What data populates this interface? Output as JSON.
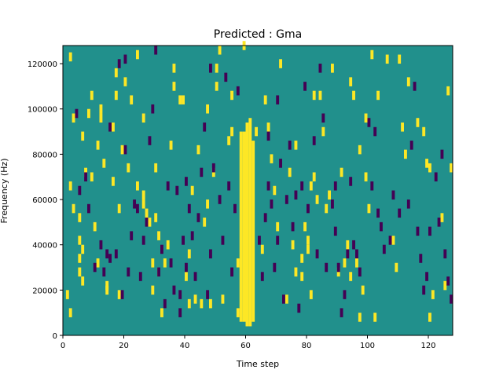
{
  "chart_data": {
    "type": "heatmap",
    "title": "Predicted : Gma",
    "xlabel": "Time step",
    "ylabel": "Frequency (Hz)",
    "xlim": [
      0,
      128
    ],
    "ylim": [
      0,
      128000
    ],
    "x_ticks": [
      0,
      20,
      40,
      60,
      80,
      100,
      120
    ],
    "x_tick_labels": [
      "0",
      "20",
      "40",
      "60",
      "80",
      "100",
      "120"
    ],
    "y_ticks": [
      0,
      20000,
      40000,
      60000,
      80000,
      100000,
      120000
    ],
    "y_tick_labels": [
      "0",
      "20000",
      "40000",
      "60000",
      "80000",
      "100000",
      "120000"
    ],
    "grid": false,
    "legend": false,
    "colors": {
      "background": "#21908c",
      "high": "#fde725",
      "low": "#440154"
    },
    "background_value": 0,
    "cell_height_hz": 2000,
    "dominant_band": {
      "value": 1,
      "columns": [
        {
          "x": 58,
          "y_range": [
            6000,
            90000
          ]
        },
        {
          "x": 59,
          "y_range": [
            6000,
            90000
          ]
        },
        {
          "x": 60,
          "y_range": [
            4000,
            94000
          ]
        },
        {
          "x": 61,
          "y_range": [
            4000,
            96000
          ]
        },
        {
          "x": 62,
          "y_range": [
            6000,
            86000
          ]
        }
      ]
    },
    "cells_high": [
      [
        2,
        123000
      ],
      [
        3,
        96000
      ],
      [
        2,
        66000
      ],
      [
        2,
        10000
      ],
      [
        1,
        18000
      ],
      [
        3,
        56000
      ],
      [
        5,
        52000
      ],
      [
        5,
        42000
      ],
      [
        5,
        34000
      ],
      [
        5,
        28000
      ],
      [
        6,
        38000
      ],
      [
        6,
        24000
      ],
      [
        6,
        88000
      ],
      [
        7,
        72000
      ],
      [
        8,
        98000
      ],
      [
        9,
        70000
      ],
      [
        9,
        106000
      ],
      [
        10,
        48000
      ],
      [
        11,
        32000
      ],
      [
        11,
        84000
      ],
      [
        12,
        96000
      ],
      [
        12,
        100000
      ],
      [
        13,
        76000
      ],
      [
        14,
        22000
      ],
      [
        14,
        20000
      ],
      [
        16,
        92000
      ],
      [
        16,
        68000
      ],
      [
        17,
        116000
      ],
      [
        17,
        106000
      ],
      [
        18,
        56000
      ],
      [
        18,
        18000
      ],
      [
        19,
        82000
      ],
      [
        20,
        112000
      ],
      [
        21,
        74000
      ],
      [
        22,
        104000
      ],
      [
        24,
        124000
      ],
      [
        24,
        66000
      ],
      [
        26,
        96000
      ],
      [
        26,
        62000
      ],
      [
        26,
        58000
      ],
      [
        27,
        54000
      ],
      [
        28,
        50000
      ],
      [
        29,
        20000
      ],
      [
        29,
        32000
      ],
      [
        30,
        74000
      ],
      [
        30,
        52000
      ],
      [
        31,
        44000
      ],
      [
        31,
        28000
      ],
      [
        32,
        10000
      ],
      [
        33,
        32000
      ],
      [
        34,
        40000
      ],
      [
        35,
        84000
      ],
      [
        36,
        110000
      ],
      [
        36,
        118000
      ],
      [
        38,
        104000
      ],
      [
        39,
        104000
      ],
      [
        40,
        26000
      ],
      [
        41,
        36000
      ],
      [
        41,
        14000
      ],
      [
        42,
        64000
      ],
      [
        43,
        16000
      ],
      [
        44,
        82000
      ],
      [
        45,
        14000
      ],
      [
        46,
        50000
      ],
      [
        47,
        100000
      ],
      [
        47,
        58000
      ],
      [
        48,
        14000
      ],
      [
        49,
        72000
      ],
      [
        50,
        118000
      ],
      [
        50,
        110000
      ],
      [
        51,
        126000
      ],
      [
        52,
        16000
      ],
      [
        54,
        86000
      ],
      [
        55,
        90000
      ],
      [
        55,
        106000
      ],
      [
        57,
        10000
      ],
      [
        57,
        32000
      ],
      [
        59,
        128000
      ],
      [
        63,
        90000
      ],
      [
        65,
        38000
      ],
      [
        66,
        104000
      ],
      [
        67,
        92000
      ],
      [
        68,
        78000
      ],
      [
        69,
        64000
      ],
      [
        70,
        48000
      ],
      [
        71,
        120000
      ],
      [
        73,
        16000
      ],
      [
        74,
        72000
      ],
      [
        75,
        40000
      ],
      [
        76,
        28000
      ],
      [
        76,
        84000
      ],
      [
        78,
        34000
      ],
      [
        78,
        26000
      ],
      [
        79,
        48000
      ],
      [
        80,
        42000
      ],
      [
        80,
        38000
      ],
      [
        81,
        66000
      ],
      [
        81,
        18000
      ],
      [
        82,
        70000
      ],
      [
        82,
        106000
      ],
      [
        83,
        60000
      ],
      [
        84,
        106000
      ],
      [
        85,
        90000
      ],
      [
        86,
        56000
      ],
      [
        87,
        62000
      ],
      [
        88,
        118000
      ],
      [
        90,
        28000
      ],
      [
        91,
        72000
      ],
      [
        92,
        32000
      ],
      [
        93,
        40000
      ],
      [
        94,
        112000
      ],
      [
        94,
        26000
      ],
      [
        95,
        106000
      ],
      [
        96,
        32000
      ],
      [
        97,
        82000
      ],
      [
        97,
        8000
      ],
      [
        98,
        20000
      ],
      [
        99,
        96000
      ],
      [
        99,
        70000
      ],
      [
        100,
        56000
      ],
      [
        101,
        124000
      ],
      [
        102,
        8000
      ],
      [
        103,
        106000
      ],
      [
        106,
        122000
      ],
      [
        108,
        42000
      ],
      [
        109,
        30000
      ],
      [
        110,
        122000
      ],
      [
        111,
        92000
      ],
      [
        112,
        80000
      ],
      [
        113,
        112000
      ],
      [
        116,
        94000
      ],
      [
        118,
        90000
      ],
      [
        119,
        76000
      ],
      [
        120,
        74000
      ],
      [
        120,
        8000
      ],
      [
        121,
        18000
      ],
      [
        124,
        52000
      ],
      [
        125,
        22000
      ],
      [
        126,
        108000
      ],
      [
        127,
        74000
      ]
    ],
    "cells_low": [
      [
        4,
        98000
      ],
      [
        5,
        64000
      ],
      [
        7,
        70000
      ],
      [
        8,
        56000
      ],
      [
        10,
        30000
      ],
      [
        12,
        40000
      ],
      [
        13,
        28000
      ],
      [
        14,
        36000
      ],
      [
        15,
        34000
      ],
      [
        15,
        92000
      ],
      [
        17,
        36000
      ],
      [
        18,
        120000
      ],
      [
        19,
        18000
      ],
      [
        20,
        122000
      ],
      [
        20,
        82000
      ],
      [
        21,
        28000
      ],
      [
        22,
        44000
      ],
      [
        23,
        58000
      ],
      [
        24,
        56000
      ],
      [
        25,
        26000
      ],
      [
        26,
        42000
      ],
      [
        27,
        50000
      ],
      [
        28,
        86000
      ],
      [
        29,
        100000
      ],
      [
        30,
        126000
      ],
      [
        31,
        28000
      ],
      [
        32,
        38000
      ],
      [
        33,
        14000
      ],
      [
        34,
        66000
      ],
      [
        35,
        32000
      ],
      [
        36,
        20000
      ],
      [
        37,
        64000
      ],
      [
        38,
        18000
      ],
      [
        38,
        10000
      ],
      [
        39,
        42000
      ],
      [
        40,
        30000
      ],
      [
        40,
        68000
      ],
      [
        41,
        56000
      ],
      [
        42,
        44000
      ],
      [
        43,
        26000
      ],
      [
        44,
        52000
      ],
      [
        45,
        72000
      ],
      [
        46,
        92000
      ],
      [
        47,
        18000
      ],
      [
        48,
        36000
      ],
      [
        48,
        118000
      ],
      [
        49,
        74000
      ],
      [
        51,
        60000
      ],
      [
        52,
        42000
      ],
      [
        53,
        114000
      ],
      [
        54,
        66000
      ],
      [
        55,
        28000
      ],
      [
        56,
        56000
      ],
      [
        57,
        108000
      ],
      [
        64,
        42000
      ],
      [
        65,
        26000
      ],
      [
        66,
        52000
      ],
      [
        67,
        88000
      ],
      [
        67,
        66000
      ],
      [
        68,
        58000
      ],
      [
        69,
        30000
      ],
      [
        70,
        42000
      ],
      [
        70,
        104000
      ],
      [
        71,
        76000
      ],
      [
        72,
        16000
      ],
      [
        73,
        60000
      ],
      [
        74,
        84000
      ],
      [
        75,
        48000
      ],
      [
        76,
        62000
      ],
      [
        77,
        12000
      ],
      [
        78,
        66000
      ],
      [
        79,
        110000
      ],
      [
        80,
        56000
      ],
      [
        82,
        86000
      ],
      [
        83,
        36000
      ],
      [
        84,
        118000
      ],
      [
        85,
        96000
      ],
      [
        86,
        30000
      ],
      [
        88,
        58000
      ],
      [
        89,
        66000
      ],
      [
        89,
        46000
      ],
      [
        90,
        30000
      ],
      [
        91,
        10000
      ],
      [
        92,
        18000
      ],
      [
        93,
        36000
      ],
      [
        94,
        68000
      ],
      [
        95,
        40000
      ],
      [
        96,
        36000
      ],
      [
        97,
        28000
      ],
      [
        100,
        94000
      ],
      [
        101,
        66000
      ],
      [
        102,
        90000
      ],
      [
        103,
        54000
      ],
      [
        104,
        48000
      ],
      [
        105,
        38000
      ],
      [
        107,
        42000
      ],
      [
        108,
        62000
      ],
      [
        110,
        54000
      ],
      [
        113,
        58000
      ],
      [
        114,
        84000
      ],
      [
        115,
        110000
      ],
      [
        116,
        46000
      ],
      [
        117,
        34000
      ],
      [
        118,
        20000
      ],
      [
        119,
        26000
      ],
      [
        120,
        46000
      ],
      [
        122,
        70000
      ],
      [
        123,
        50000
      ],
      [
        124,
        80000
      ],
      [
        125,
        36000
      ],
      [
        126,
        24000
      ],
      [
        127,
        16000
      ]
    ]
  }
}
